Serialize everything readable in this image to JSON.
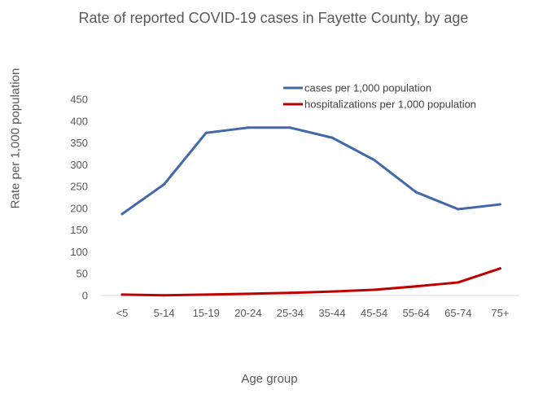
{
  "chart_data": {
    "type": "line",
    "title": "Rate of reported COVID-19 cases in Fayette County, by age",
    "xlabel": "Age group",
    "ylabel": "Rate per 1,000 population",
    "categories": [
      "<5",
      "5-14",
      "15-19",
      "20-24",
      "25-34",
      "35-44",
      "45-54",
      "55-64",
      "65-74",
      "75+"
    ],
    "ylim": [
      0,
      450
    ],
    "yticks": [
      "0",
      "50",
      "100",
      "150",
      "200",
      "250",
      "300",
      "350",
      "400",
      "450"
    ],
    "grid": false,
    "legend_position": "top-right",
    "series": [
      {
        "name": "cases per 1,000 population",
        "color": "#4169aa",
        "values": [
          187,
          255,
          373,
          385,
          385,
          362,
          311,
          237,
          198,
          209
        ]
      },
      {
        "name": "hospitalizations per 1,000 population",
        "color": "#c00000",
        "values": [
          2,
          0.5,
          2,
          4,
          6,
          9,
          13,
          21,
          30,
          62
        ]
      }
    ]
  }
}
